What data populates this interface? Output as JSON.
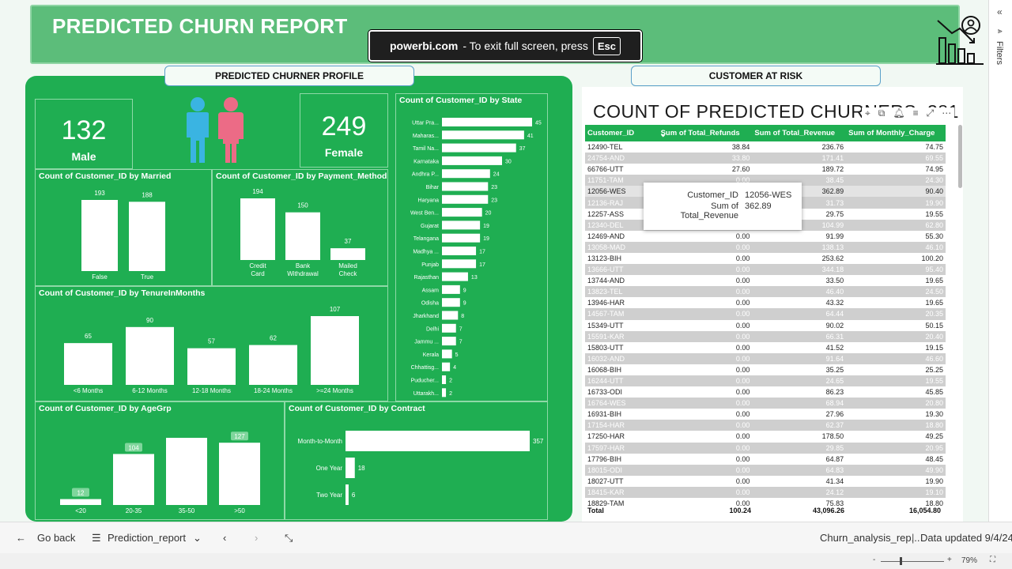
{
  "header": {
    "title": "PREDICTED CHURN REPORT"
  },
  "toast": {
    "site": "powerbi.com",
    "message": "-  To exit full screen, press",
    "key": "Esc"
  },
  "sections": {
    "profile": "PREDICTED CHURNER PROFILE",
    "risk": "CUSTOMER AT RISK"
  },
  "kpis": {
    "male_value": "132",
    "male_label": "Male",
    "female_value": "249",
    "female_label": "Female"
  },
  "charts": {
    "married": {
      "title": "Count of Customer_ID by Married"
    },
    "payment": {
      "title": "Count of Customer_ID by Payment_Method"
    },
    "tenure": {
      "title": "Count of Customer_ID by TenureInMonths"
    },
    "agegrp": {
      "title": "Count of Customer_ID by AgeGrp"
    },
    "contract": {
      "title": "Count of Customer_ID by Contract"
    },
    "state": {
      "title": "Count of Customer_ID by State"
    }
  },
  "chart_data": [
    {
      "type": "bar",
      "title": "Count of Customer_ID by Married",
      "categories": [
        "False",
        "True"
      ],
      "values": [
        193,
        188
      ]
    },
    {
      "type": "bar",
      "title": "Count of Customer_ID by Payment_Method",
      "categories": [
        "Credit Card",
        "Bank Withdrawal",
        "Mailed Check"
      ],
      "values": [
        194,
        150,
        37
      ]
    },
    {
      "type": "bar",
      "title": "Count of Customer_ID by TenureInMonths",
      "categories": [
        "<6 Months",
        "6-12 Months",
        "12-18 Months",
        "18-24 Months",
        ">=24 Months"
      ],
      "values": [
        65,
        90,
        57,
        62,
        107
      ]
    },
    {
      "type": "bar",
      "title": "Count of Customer_ID by AgeGrp",
      "categories": [
        "<20",
        "20-35",
        "35-50",
        ">50"
      ],
      "values": [
        12,
        104,
        137,
        127
      ],
      "data_labels": [
        "12",
        "104",
        "",
        "127"
      ]
    },
    {
      "type": "bar",
      "orientation": "horizontal",
      "title": "Count of Customer_ID by Contract",
      "categories": [
        "Month-to-Month",
        "One Year",
        "Two Year"
      ],
      "values": [
        357,
        18,
        6
      ]
    },
    {
      "type": "bar",
      "orientation": "horizontal",
      "title": "Count of Customer_ID by State",
      "categories": [
        "Uttar Pra...",
        "Maharas...",
        "Tamil Na...",
        "Karnataka",
        "Andhra P...",
        "Bihar",
        "Haryana",
        "West Ben...",
        "Gujarat",
        "Telangana",
        "Madhya ...",
        "Punjab",
        "Rajasthan",
        "Assam",
        "Odisha",
        "Jharkhand",
        "Delhi",
        "Jammu ...",
        "Kerala",
        "Chhattisg...",
        "Puducher...",
        "Uttarakh..."
      ],
      "values": [
        45,
        41,
        37,
        30,
        24,
        23,
        23,
        20,
        19,
        19,
        17,
        17,
        13,
        9,
        9,
        8,
        7,
        7,
        5,
        4,
        2,
        2
      ]
    }
  ],
  "table": {
    "title": "COUNT OF PREDICTED CHURNERS: 381",
    "columns": [
      "Customer_ID",
      "Sum of Total_Refunds",
      "Sum of Total_Revenue",
      "Sum of Monthly_Charge"
    ],
    "rows": [
      [
        "12490-TEL",
        "38.84",
        "236.76",
        "74.75"
      ],
      [
        "24754-AND",
        "33.80",
        "171.41",
        "69.55"
      ],
      [
        "66766-UTT",
        "27.60",
        "189.72",
        "74.95"
      ],
      [
        "11751-TAM",
        "0.00",
        "38.45",
        "24.30"
      ],
      [
        "12056-WES",
        "0.00",
        "362.89",
        "90.40"
      ],
      [
        "12136-RAJ",
        "0.00",
        "31.73",
        "19.90"
      ],
      [
        "12257-ASS",
        "0.00",
        "29.75",
        "19.55"
      ],
      [
        "12340-DEL",
        "0.00",
        "104.99",
        "62.80"
      ],
      [
        "12469-AND",
        "0.00",
        "91.99",
        "55.30"
      ],
      [
        "13058-MAD",
        "0.00",
        "138.13",
        "46.10"
      ],
      [
        "13123-BIH",
        "0.00",
        "253.62",
        "100.20"
      ],
      [
        "13666-UTT",
        "0.00",
        "344.18",
        "95.40"
      ],
      [
        "13744-AND",
        "0.00",
        "33.50",
        "19.65"
      ],
      [
        "13823-TEL",
        "0.00",
        "46.40",
        "24.50"
      ],
      [
        "13946-HAR",
        "0.00",
        "43.32",
        "19.65"
      ],
      [
        "14567-TAM",
        "0.00",
        "64.44",
        "20.35"
      ],
      [
        "15349-UTT",
        "0.00",
        "90.02",
        "50.15"
      ],
      [
        "15591-KAR",
        "0.00",
        "66.31",
        "20.40"
      ],
      [
        "15803-UTT",
        "0.00",
        "41.52",
        "19.15"
      ],
      [
        "16032-AND",
        "0.00",
        "91.64",
        "46.60"
      ],
      [
        "16068-BIH",
        "0.00",
        "35.25",
        "25.25"
      ],
      [
        "16244-UTT",
        "0.00",
        "24.65",
        "19.55"
      ],
      [
        "16733-ODI",
        "0.00",
        "86.23",
        "45.85"
      ],
      [
        "16764-WES",
        "0.00",
        "68.94",
        "20.80"
      ],
      [
        "16931-BIH",
        "0.00",
        "27.96",
        "19.30"
      ],
      [
        "17154-HAR",
        "0.00",
        "62.37",
        "18.80"
      ],
      [
        "17250-HAR",
        "0.00",
        "178.50",
        "49.25"
      ],
      [
        "17597-HAR",
        "0.00",
        "29.85",
        "20.95"
      ],
      [
        "17796-BIH",
        "0.00",
        "64.87",
        "48.45"
      ],
      [
        "18015-ODI",
        "0.00",
        "64.83",
        "49.90"
      ],
      [
        "18027-UTT",
        "0.00",
        "41.34",
        "19.90"
      ],
      [
        "18415-KAR",
        "0.00",
        "24.12",
        "19.10"
      ],
      [
        "18829-TAM",
        "0.00",
        "75.83",
        "18.80"
      ]
    ],
    "total": [
      "Total",
      "100.24",
      "43,096.26",
      "16,054.80"
    ]
  },
  "tooltip": {
    "k1": "Customer_ID",
    "v1": "12056-WES",
    "k2": "Sum of Total_Revenue",
    "v2": "362.89"
  },
  "filters_label": "Filters",
  "bottom": {
    "back": "Go back",
    "page": "Prediction_report",
    "file": "Churn_analysis_rep...",
    "updated": "Data updated 9/4/24",
    "zoom": "79%"
  },
  "colors": {
    "header": "#5cbd7a",
    "panel": "#1fae52",
    "male_icon": "#3ab4e2",
    "female_icon": "#ec6b86"
  }
}
